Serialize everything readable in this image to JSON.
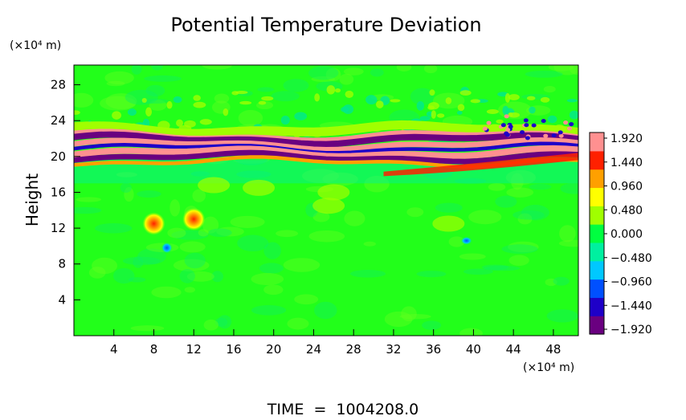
{
  "chart_data": {
    "type": "heatmap",
    "title": "Potential Temperature Deviation",
    "ylabel": "Height",
    "yunit": "(×10⁴ m)",
    "xunit": "(×10⁴ m)",
    "xlim": [
      0,
      50.5
    ],
    "ylim": [
      0,
      30.2
    ],
    "xticks": [
      4,
      8,
      12,
      16,
      20,
      24,
      28,
      32,
      36,
      40,
      44,
      48
    ],
    "yticks": [
      4,
      8,
      12,
      16,
      20,
      24,
      28
    ],
    "xtick_labels": [
      "4",
      "8",
      "12",
      "16",
      "20",
      "24",
      "28",
      "32",
      "36",
      "40",
      "44",
      "48"
    ],
    "ytick_labels": [
      "4",
      "8",
      "12",
      "16",
      "20",
      "24",
      "28"
    ],
    "colorbar": {
      "labels": [
        "1.920",
        "1.440",
        "0.960",
        "0.480",
        "0.000",
        "−0.480",
        "−0.960",
        "−1.440",
        "−1.920"
      ],
      "min": -1.92,
      "max": 1.92,
      "colors": [
        "#6a0080",
        "#1e00c8",
        "#0050ff",
        "#00c8ff",
        "#00f0a0",
        "#00ff40",
        "#a0ff00",
        "#ffff00",
        "#ffa000",
        "#ff2000",
        "#ff9090"
      ]
    },
    "features": {
      "background_value": 0.1,
      "jet_layer_center_height": 21,
      "jet_layer_value_range": [
        -1.92,
        1.92
      ],
      "warm_blobs_center_x": [
        8,
        12
      ],
      "warm_blobs_center_y": [
        12.5,
        13
      ],
      "warm_blobs_value": 1.44
    },
    "footer": "TIME  =  1004208.0"
  }
}
